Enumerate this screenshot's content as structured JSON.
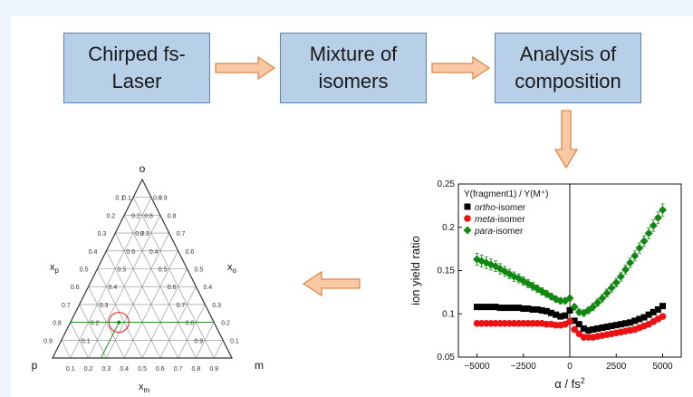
{
  "flow": {
    "box1": "Chirped fs-\nLaser",
    "box2": "Mixture of\nisomers",
    "box3": "Analysis of\ncomposition"
  },
  "colors": {
    "box_fill": "#b7d0e8",
    "box_border": "#5b84b1",
    "arrow_fill": "#f8c9a4",
    "arrow_stroke": "#e0874a",
    "ortho": "#000000",
    "meta": "#ee1111",
    "para": "#118811",
    "ternary_marker": "#ee1111",
    "ternary_line": "#118811"
  },
  "ternary": {
    "vertex_top": "o",
    "vertex_left": "p",
    "vertex_right": "m",
    "axis_left": "x",
    "axis_left_sub": "p",
    "axis_right": "x",
    "axis_right_sub": "o",
    "axis_bottom": "x",
    "axis_bottom_sub": "m",
    "ticks": [
      "0.1",
      "0.2",
      "0.3",
      "0.4",
      "0.5",
      "0.6",
      "0.7",
      "0.8",
      "0.9"
    ],
    "point": {
      "o": 0.2,
      "m": 0.27,
      "p": 0.53
    }
  },
  "chart_data": {
    "type": "scatter",
    "xlabel": "α / fs²",
    "xlabel_main": "α / fs",
    "xlabel_sup": "2",
    "ylabel": "ion yield ratio",
    "xlim": [
      -6000,
      6000
    ],
    "ylim": [
      0.05,
      0.25
    ],
    "xticks": [
      -5000,
      -2500,
      0,
      2500,
      5000
    ],
    "xtick_labels": [
      "−5000",
      "−2500",
      "0",
      "2500",
      "5000"
    ],
    "yticks": [
      0.05,
      0.1,
      0.15,
      0.2,
      0.25
    ],
    "ytick_labels": [
      "0.05",
      "0.1",
      "0.15",
      "0.2",
      "0.25"
    ],
    "vline_x": 0,
    "legend_title": "Y(fragment1) / Y(M⁺)",
    "legend_position": "top-left",
    "series": [
      {
        "name": "ortho-isomer",
        "name_italic": "ortho",
        "name_rest": "-isomer",
        "color": "#000000",
        "marker": "square",
        "x": [
          -5000,
          -4750,
          -4500,
          -4250,
          -4000,
          -3750,
          -3500,
          -3250,
          -3000,
          -2750,
          -2500,
          -2250,
          -2000,
          -1750,
          -1500,
          -1250,
          -1000,
          -750,
          -500,
          -250,
          0,
          250,
          500,
          750,
          1000,
          1250,
          1500,
          1750,
          2000,
          2250,
          2500,
          2750,
          3000,
          3250,
          3500,
          3750,
          4000,
          4250,
          4500,
          4750,
          5000
        ],
        "y": [
          0.108,
          0.108,
          0.108,
          0.108,
          0.108,
          0.107,
          0.107,
          0.107,
          0.107,
          0.107,
          0.106,
          0.106,
          0.105,
          0.105,
          0.104,
          0.103,
          0.101,
          0.099,
          0.097,
          0.098,
          0.104,
          0.092,
          0.088,
          0.083,
          0.081,
          0.082,
          0.083,
          0.084,
          0.085,
          0.086,
          0.087,
          0.088,
          0.089,
          0.09,
          0.092,
          0.094,
          0.096,
          0.099,
          0.102,
          0.105,
          0.109
        ]
      },
      {
        "name": "meta-isomer",
        "name_italic": "meta",
        "name_rest": "-isomer",
        "color": "#ee1111",
        "marker": "circle",
        "x": [
          -5000,
          -4750,
          -4500,
          -4250,
          -4000,
          -3750,
          -3500,
          -3250,
          -3000,
          -2750,
          -2500,
          -2250,
          -2000,
          -1750,
          -1500,
          -1250,
          -1000,
          -750,
          -500,
          -250,
          0,
          250,
          500,
          750,
          1000,
          1250,
          1500,
          1750,
          2000,
          2250,
          2500,
          2750,
          3000,
          3250,
          3500,
          3750,
          4000,
          4250,
          4500,
          4750,
          5000
        ],
        "y": [
          0.089,
          0.089,
          0.089,
          0.089,
          0.089,
          0.089,
          0.089,
          0.089,
          0.089,
          0.089,
          0.089,
          0.089,
          0.089,
          0.089,
          0.089,
          0.088,
          0.088,
          0.087,
          0.087,
          0.088,
          0.091,
          0.082,
          0.077,
          0.073,
          0.073,
          0.073,
          0.074,
          0.075,
          0.076,
          0.077,
          0.078,
          0.079,
          0.08,
          0.081,
          0.082,
          0.084,
          0.086,
          0.088,
          0.091,
          0.094,
          0.097
        ]
      },
      {
        "name": "para-isomer",
        "name_italic": "para",
        "name_rest": "-isomer",
        "color": "#118811",
        "marker": "diamond",
        "x": [
          -5000,
          -4750,
          -4500,
          -4250,
          -4000,
          -3750,
          -3500,
          -3250,
          -3000,
          -2750,
          -2500,
          -2250,
          -2000,
          -1750,
          -1500,
          -1250,
          -1000,
          -750,
          -500,
          -250,
          0,
          250,
          500,
          750,
          1000,
          1250,
          1500,
          1750,
          2000,
          2250,
          2500,
          2750,
          3000,
          3250,
          3500,
          3750,
          4000,
          4250,
          4500,
          4750,
          5000
        ],
        "y": [
          0.163,
          0.161,
          0.159,
          0.157,
          0.155,
          0.152,
          0.149,
          0.146,
          0.143,
          0.141,
          0.138,
          0.135,
          0.132,
          0.129,
          0.126,
          0.123,
          0.12,
          0.117,
          0.115,
          0.115,
          0.118,
          0.108,
          0.102,
          0.101,
          0.104,
          0.108,
          0.113,
          0.118,
          0.124,
          0.13,
          0.136,
          0.143,
          0.151,
          0.159,
          0.167,
          0.176,
          0.184,
          0.193,
          0.202,
          0.211,
          0.22
        ]
      }
    ]
  }
}
